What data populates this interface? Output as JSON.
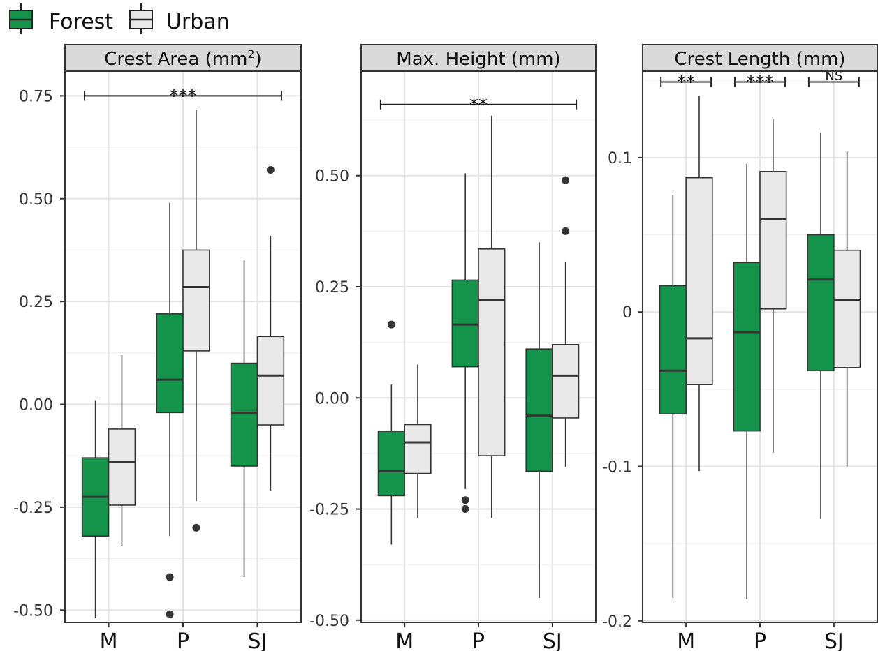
{
  "legend": {
    "items": [
      {
        "label": "Forest",
        "color": "#13944a"
      },
      {
        "label": "Urban",
        "color": "#e8e8e8"
      }
    ]
  },
  "chart_data": [
    {
      "type": "boxplot",
      "title": "Crest Area (mm",
      "title_superscript": "2",
      "title_suffix": ")",
      "categories": [
        "M",
        "P",
        "SJ"
      ],
      "ylim": [
        -0.53,
        0.81
      ],
      "y_ticks": [
        -0.5,
        -0.25,
        0.0,
        0.25,
        0.5,
        0.75
      ],
      "y_tick_labels": [
        "-0.50",
        "-0.25",
        "0.00",
        "0.25",
        "0.50",
        "0.75"
      ],
      "grid": true,
      "series": [
        {
          "name": "Forest",
          "color": "#13944a",
          "boxes": [
            {
              "category": "M",
              "whisker_low": -0.52,
              "q1": -0.32,
              "median": -0.225,
              "q3": -0.13,
              "whisker_high": 0.01,
              "outliers": []
            },
            {
              "category": "P",
              "whisker_low": -0.32,
              "q1": -0.02,
              "median": 0.06,
              "q3": 0.22,
              "whisker_high": 0.49,
              "outliers": [
                -0.42,
                -0.51
              ]
            },
            {
              "category": "SJ",
              "whisker_low": -0.42,
              "q1": -0.15,
              "median": -0.02,
              "q3": 0.1,
              "whisker_high": 0.35,
              "outliers": []
            }
          ]
        },
        {
          "name": "Urban",
          "color": "#e8e8e8",
          "boxes": [
            {
              "category": "M",
              "whisker_low": -0.345,
              "q1": -0.245,
              "median": -0.14,
              "q3": -0.06,
              "whisker_high": 0.12,
              "outliers": []
            },
            {
              "category": "P",
              "whisker_low": -0.235,
              "q1": 0.13,
              "median": 0.285,
              "q3": 0.375,
              "whisker_high": 0.715,
              "outliers": [
                -0.3
              ]
            },
            {
              "category": "SJ",
              "whisker_low": -0.21,
              "q1": -0.05,
              "median": 0.07,
              "q3": 0.165,
              "whisker_high": 0.41,
              "outliers": [
                0.57
              ]
            }
          ]
        }
      ],
      "annotations": [
        {
          "label": "***",
          "from": "M",
          "to": "SJ",
          "y": 0.75
        }
      ]
    },
    {
      "type": "boxplot",
      "title": "Max. Height (mm)",
      "categories": [
        "M",
        "P",
        "SJ"
      ],
      "ylim": [
        -0.505,
        0.735
      ],
      "y_ticks": [
        -0.5,
        -0.25,
        0.0,
        0.25,
        0.5
      ],
      "y_tick_labels": [
        "-0.50",
        "-0.25",
        "0.00",
        "0.25",
        "0.50"
      ],
      "grid": true,
      "series": [
        {
          "name": "Forest",
          "color": "#13944a",
          "boxes": [
            {
              "category": "M",
              "whisker_low": -0.33,
              "q1": -0.22,
              "median": -0.165,
              "q3": -0.075,
              "whisker_high": 0.03,
              "outliers": [
                0.165
              ]
            },
            {
              "category": "P",
              "whisker_low": -0.205,
              "q1": 0.07,
              "median": 0.165,
              "q3": 0.265,
              "whisker_high": 0.505,
              "outliers": [
                -0.23,
                -0.25
              ]
            },
            {
              "category": "SJ",
              "whisker_low": -0.45,
              "q1": -0.165,
              "median": -0.04,
              "q3": 0.11,
              "whisker_high": 0.35,
              "outliers": []
            }
          ]
        },
        {
          "name": "Urban",
          "color": "#e8e8e8",
          "boxes": [
            {
              "category": "M",
              "whisker_low": -0.27,
              "q1": -0.17,
              "median": -0.1,
              "q3": -0.06,
              "whisker_high": 0.075,
              "outliers": []
            },
            {
              "category": "P",
              "whisker_low": -0.27,
              "q1": -0.13,
              "median": 0.22,
              "q3": 0.335,
              "whisker_high": 0.635,
              "outliers": []
            },
            {
              "category": "SJ",
              "whisker_low": -0.155,
              "q1": -0.045,
              "median": 0.05,
              "q3": 0.12,
              "whisker_high": 0.305,
              "outliers": [
                0.49,
                0.375
              ]
            }
          ]
        }
      ],
      "annotations": [
        {
          "label": "**",
          "from": "M",
          "to": "SJ",
          "y": 0.66
        }
      ]
    },
    {
      "type": "boxplot",
      "title": "Crest Length (mm)",
      "categories": [
        "M",
        "P",
        "SJ"
      ],
      "ylim": [
        -0.201,
        0.156
      ],
      "y_ticks": [
        -0.2,
        -0.1,
        0.0,
        0.1
      ],
      "y_tick_labels": [
        "-0.2",
        "-0.1",
        "0",
        "0.1"
      ],
      "grid": true,
      "series": [
        {
          "name": "Forest",
          "color": "#13944a",
          "boxes": [
            {
              "category": "M",
              "whisker_low": -0.185,
              "q1": -0.066,
              "median": -0.038,
              "q3": 0.017,
              "whisker_high": 0.076,
              "outliers": []
            },
            {
              "category": "P",
              "whisker_low": -0.186,
              "q1": -0.077,
              "median": -0.013,
              "q3": 0.032,
              "whisker_high": 0.096,
              "outliers": []
            },
            {
              "category": "SJ",
              "whisker_low": -0.134,
              "q1": -0.038,
              "median": 0.021,
              "q3": 0.05,
              "whisker_high": 0.116,
              "outliers": []
            }
          ]
        },
        {
          "name": "Urban",
          "color": "#e8e8e8",
          "boxes": [
            {
              "category": "M",
              "whisker_low": -0.103,
              "q1": -0.047,
              "median": -0.017,
              "q3": 0.087,
              "whisker_high": 0.14,
              "outliers": []
            },
            {
              "category": "P",
              "whisker_low": -0.091,
              "q1": 0.002,
              "median": 0.06,
              "q3": 0.091,
              "whisker_high": 0.125,
              "outliers": []
            },
            {
              "category": "SJ",
              "whisker_low": -0.1,
              "q1": -0.036,
              "median": 0.008,
              "q3": 0.04,
              "whisker_high": 0.104,
              "outliers": []
            }
          ]
        }
      ],
      "annotations": [
        {
          "label": "**",
          "from": "M",
          "to": "M",
          "y": 0.149
        },
        {
          "label": "***",
          "from": "P",
          "to": "P",
          "y": 0.149
        },
        {
          "label": "NS",
          "from": "SJ",
          "to": "SJ",
          "y": 0.149
        }
      ]
    }
  ]
}
